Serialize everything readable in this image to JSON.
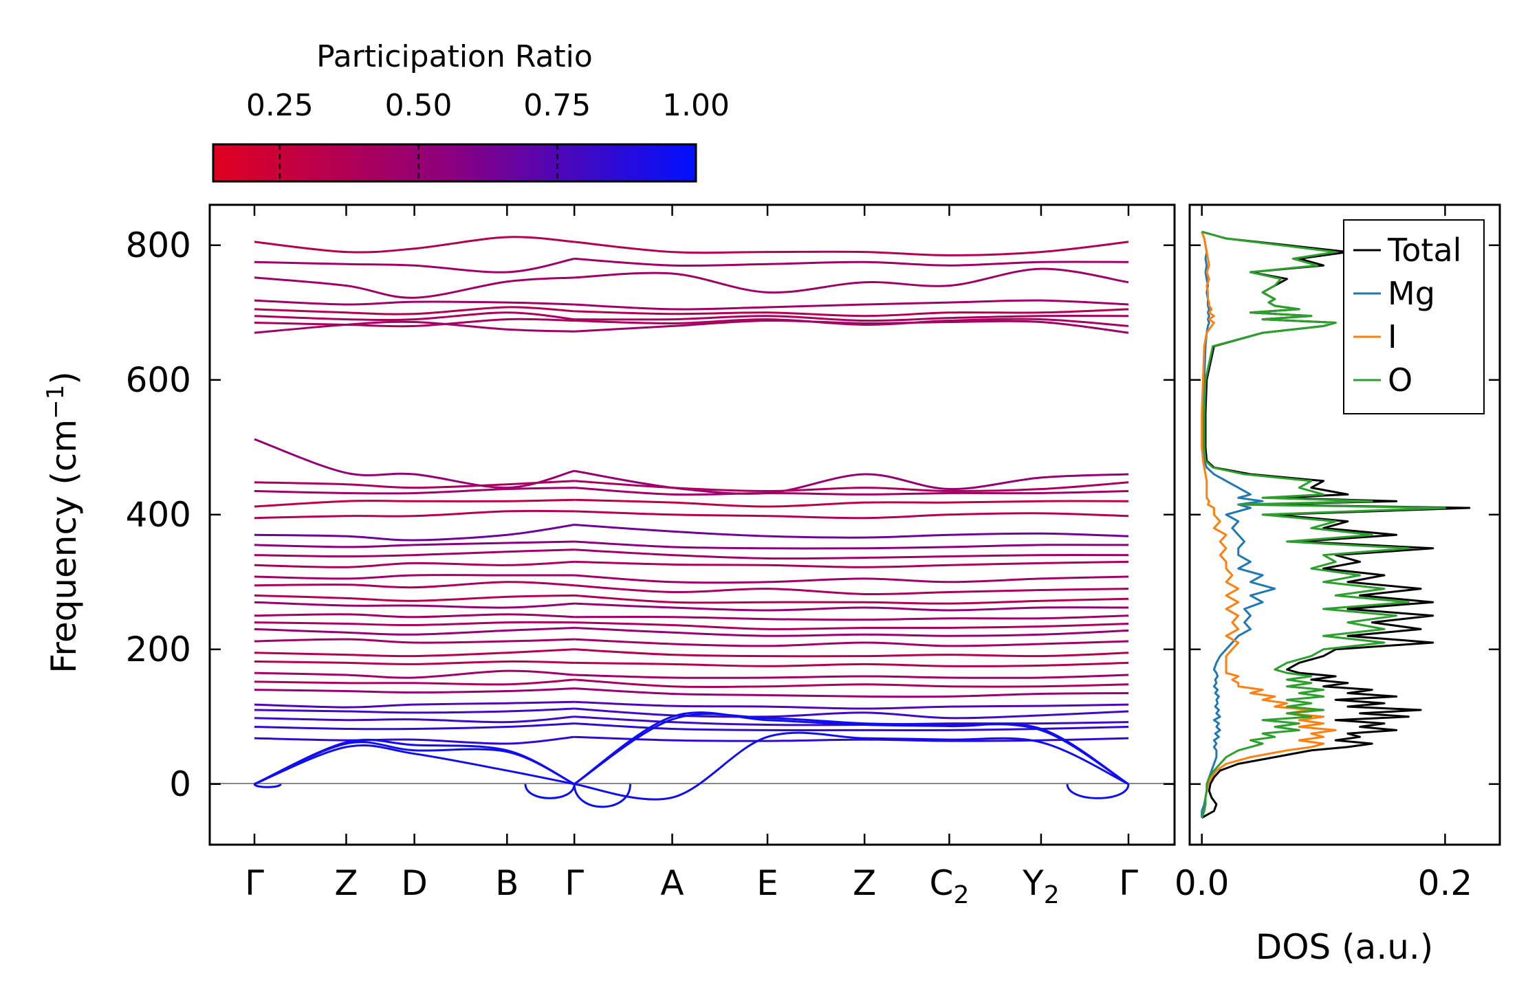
{
  "chart_data": [
    {
      "type": "line",
      "name": "phonon band structure",
      "ylabel": "Frequency (cm",
      "ylabel_sup": "−1",
      "ylabel_end": ")",
      "ylim": [
        -90,
        860
      ],
      "yticks": [
        0,
        200,
        400,
        600,
        800
      ],
      "ytick_labels": [
        "0",
        "200",
        "400",
        "600",
        "800"
      ],
      "kpath": [
        {
          "label": "Γ",
          "sub": "",
          "x": 0.0
        },
        {
          "label": "Z",
          "sub": "",
          "x": 0.105
        },
        {
          "label": "D",
          "sub": "",
          "x": 0.183
        },
        {
          "label": "B",
          "sub": "",
          "x": 0.289
        },
        {
          "label": "Γ",
          "sub": "",
          "x": 0.366
        },
        {
          "label": "A",
          "sub": "",
          "x": 0.478
        },
        {
          "label": "E",
          "sub": "",
          "x": 0.587
        },
        {
          "label": "Z",
          "sub": "",
          "x": 0.698
        },
        {
          "label": "C",
          "sub": "2",
          "x": 0.795
        },
        {
          "label": "Y",
          "sub": "2",
          "x": 0.9
        },
        {
          "label": "Γ",
          "sub": "",
          "x": 1.0
        }
      ],
      "color_by": "Participation Ratio",
      "bands": [
        {
          "f": [
            805,
            790,
            795,
            812,
            805,
            790,
            790,
            790,
            785,
            790,
            805
          ],
          "pr": 0.35
        },
        {
          "f": [
            775,
            772,
            770,
            760,
            780,
            770,
            772,
            775,
            770,
            775,
            775
          ],
          "pr": 0.45
        },
        {
          "f": [
            752,
            740,
            722,
            746,
            752,
            758,
            730,
            745,
            740,
            765,
            745
          ],
          "pr": 0.45
        },
        {
          "f": [
            718,
            712,
            716,
            715,
            712,
            705,
            708,
            712,
            715,
            718,
            712
          ],
          "pr": 0.45
        },
        {
          "f": [
            705,
            700,
            698,
            708,
            702,
            698,
            700,
            695,
            700,
            700,
            705
          ],
          "pr": 0.35
        },
        {
          "f": [
            695,
            690,
            690,
            700,
            690,
            690,
            695,
            688,
            692,
            695,
            695
          ],
          "pr": 0.4
        },
        {
          "f": [
            685,
            682,
            680,
            690,
            688,
            684,
            690,
            682,
            688,
            690,
            680
          ],
          "pr": 0.4
        },
        {
          "f": [
            670,
            682,
            686,
            675,
            672,
            680,
            688,
            684,
            686,
            686,
            670
          ],
          "pr": 0.45
        },
        {
          "f": [
            512,
            462,
            460,
            440,
            465,
            440,
            432,
            460,
            438,
            455,
            460
          ],
          "pr": 0.5
        },
        {
          "f": [
            448,
            445,
            440,
            445,
            450,
            440,
            435,
            440,
            435,
            438,
            448
          ],
          "pr": 0.4
        },
        {
          "f": [
            435,
            432,
            432,
            438,
            440,
            430,
            432,
            430,
            432,
            432,
            435
          ],
          "pr": 0.45
        },
        {
          "f": [
            412,
            420,
            420,
            420,
            422,
            418,
            412,
            418,
            418,
            420,
            420
          ],
          "pr": 0.3
        },
        {
          "f": [
            395,
            398,
            398,
            405,
            405,
            400,
            398,
            395,
            400,
            402,
            398
          ],
          "pr": 0.35
        },
        {
          "f": [
            370,
            368,
            362,
            370,
            385,
            375,
            368,
            366,
            370,
            372,
            368
          ],
          "pr": 0.65
        },
        {
          "f": [
            355,
            352,
            355,
            358,
            360,
            352,
            350,
            350,
            352,
            355,
            355
          ],
          "pr": 0.55
        },
        {
          "f": [
            340,
            338,
            340,
            345,
            348,
            340,
            335,
            336,
            338,
            340,
            340
          ],
          "pr": 0.45
        },
        {
          "f": [
            325,
            322,
            328,
            325,
            330,
            326,
            325,
            322,
            325,
            328,
            330
          ],
          "pr": 0.4
        },
        {
          "f": [
            308,
            305,
            310,
            310,
            310,
            300,
            300,
            305,
            300,
            305,
            308
          ],
          "pr": 0.45
        },
        {
          "f": [
            295,
            296,
            292,
            300,
            295,
            285,
            290,
            282,
            285,
            288,
            290
          ],
          "pr": 0.4
        },
        {
          "f": [
            280,
            276,
            272,
            278,
            280,
            270,
            270,
            270,
            268,
            272,
            275
          ],
          "pr": 0.35
        },
        {
          "f": [
            270,
            265,
            265,
            262,
            268,
            262,
            258,
            262,
            258,
            262,
            262
          ],
          "pr": 0.5
        },
        {
          "f": [
            250,
            252,
            248,
            252,
            248,
            248,
            245,
            244,
            246,
            246,
            250
          ],
          "pr": 0.45
        },
        {
          "f": [
            240,
            238,
            236,
            240,
            240,
            236,
            230,
            232,
            232,
            234,
            238
          ],
          "pr": 0.4
        },
        {
          "f": [
            230,
            225,
            222,
            228,
            232,
            225,
            220,
            222,
            220,
            222,
            228
          ],
          "pr": 0.5
        },
        {
          "f": [
            212,
            215,
            210,
            212,
            215,
            208,
            205,
            210,
            205,
            208,
            212
          ],
          "pr": 0.45
        },
        {
          "f": [
            195,
            192,
            190,
            195,
            200,
            192,
            190,
            190,
            192,
            190,
            195
          ],
          "pr": 0.35
        },
        {
          "f": [
            182,
            180,
            178,
            182,
            180,
            178,
            175,
            178,
            175,
            176,
            180
          ],
          "pr": 0.35
        },
        {
          "f": [
            165,
            162,
            158,
            168,
            162,
            158,
            158,
            160,
            158,
            158,
            162
          ],
          "pr": 0.45
        },
        {
          "f": [
            152,
            150,
            150,
            148,
            155,
            145,
            145,
            148,
            145,
            145,
            148
          ],
          "pr": 0.4
        },
        {
          "f": [
            140,
            138,
            136,
            138,
            142,
            134,
            132,
            130,
            130,
            134,
            135
          ],
          "pr": 0.5
        },
        {
          "f": [
            118,
            114,
            118,
            120,
            122,
            116,
            115,
            112,
            115,
            116,
            118
          ],
          "pr": 0.75
        },
        {
          "f": [
            110,
            108,
            106,
            108,
            112,
            102,
            100,
            106,
            98,
            102,
            108
          ],
          "pr": 0.8
        },
        {
          "f": [
            98,
            95,
            96,
            92,
            100,
            92,
            88,
            88,
            90,
            90,
            92
          ],
          "pr": 0.8
        },
        {
          "f": [
            85,
            82,
            82,
            85,
            90,
            82,
            80,
            80,
            80,
            82,
            85
          ],
          "pr": 0.85
        },
        {
          "f": [
            68,
            65,
            66,
            60,
            70,
            65,
            64,
            66,
            64,
            65,
            68
          ],
          "pr": 0.85
        },
        {
          "f": [
            0,
            62,
            58,
            50,
            0,
            100,
            95,
            88,
            86,
            82,
            0
          ],
          "pr": 0.95
        },
        {
          "f": [
            0,
            60,
            50,
            48,
            0,
            96,
            98,
            90,
            88,
            80,
            0
          ],
          "pr": 0.95
        },
        {
          "f": [
            0,
            55,
            45,
            20,
            0,
            -20,
            70,
            68,
            66,
            62,
            0
          ],
          "pr": 0.95
        }
      ],
      "imag_loops": [
        {
          "x": 0.289,
          "x0": 0.31,
          "x1": 0.366,
          "f": -28
        },
        {
          "x": 0.366,
          "x0": 0.366,
          "x1": 0.43,
          "f": -45
        },
        {
          "x": 0.93,
          "x0": 0.93,
          "x1": 1.0,
          "f": -28
        },
        {
          "x": 0.0,
          "x0": 0.0,
          "x1": 0.03,
          "f": -6
        }
      ]
    },
    {
      "type": "line",
      "name": "density of states",
      "xlabel": "DOS (a.u.)",
      "xlim": [
        -0.01,
        0.245
      ],
      "xticks": [
        0.0,
        0.2
      ],
      "xtick_labels": [
        "0.0",
        "0.2"
      ],
      "ylim": [
        -90,
        860
      ],
      "legend_position": "top-right",
      "series": [
        {
          "name": "Total",
          "color": "#000000"
        },
        {
          "name": "Mg",
          "color": "#1f77b4"
        },
        {
          "name": "I",
          "color": "#ff7f0e"
        },
        {
          "name": "O",
          "color": "#2ca02c"
        }
      ],
      "freq": [
        -50,
        -40,
        -30,
        -20,
        -10,
        0,
        10,
        20,
        30,
        40,
        50,
        55,
        60,
        65,
        70,
        75,
        80,
        85,
        90,
        95,
        100,
        105,
        110,
        115,
        120,
        125,
        130,
        135,
        140,
        145,
        150,
        155,
        160,
        165,
        170,
        180,
        190,
        200,
        210,
        220,
        230,
        240,
        250,
        260,
        270,
        280,
        290,
        300,
        310,
        320,
        330,
        340,
        350,
        360,
        370,
        380,
        390,
        400,
        410,
        415,
        420,
        425,
        430,
        440,
        450,
        460,
        470,
        480,
        500,
        550,
        600,
        650,
        670,
        680,
        685,
        690,
        695,
        700,
        705,
        710,
        715,
        720,
        730,
        740,
        750,
        760,
        770,
        780,
        790,
        800,
        810,
        820
      ],
      "total": [
        0.0,
        0.01,
        0.012,
        0.008,
        0.006,
        0.007,
        0.01,
        0.015,
        0.03,
        0.06,
        0.09,
        0.12,
        0.14,
        0.11,
        0.13,
        0.12,
        0.16,
        0.13,
        0.15,
        0.11,
        0.17,
        0.13,
        0.18,
        0.12,
        0.15,
        0.11,
        0.16,
        0.12,
        0.14,
        0.1,
        0.12,
        0.09,
        0.11,
        0.08,
        0.07,
        0.08,
        0.1,
        0.11,
        0.19,
        0.12,
        0.18,
        0.14,
        0.19,
        0.12,
        0.19,
        0.13,
        0.18,
        0.12,
        0.15,
        0.1,
        0.13,
        0.11,
        0.19,
        0.08,
        0.16,
        0.1,
        0.12,
        0.06,
        0.22,
        0.04,
        0.16,
        0.06,
        0.12,
        0.09,
        0.1,
        0.04,
        0.01,
        0.004,
        0.003,
        0.003,
        0.004,
        0.01,
        0.05,
        0.1,
        0.11,
        0.05,
        0.09,
        0.04,
        0.08,
        0.06,
        0.055,
        0.06,
        0.05,
        0.06,
        0.07,
        0.04,
        0.1,
        0.08,
        0.12,
        0.07,
        0.02,
        0.0
      ],
      "mg": [
        0.0,
        0.0,
        0.002,
        0.003,
        0.004,
        0.005,
        0.006,
        0.008,
        0.01,
        0.012,
        0.012,
        0.01,
        0.012,
        0.01,
        0.014,
        0.011,
        0.015,
        0.012,
        0.014,
        0.01,
        0.015,
        0.012,
        0.014,
        0.011,
        0.013,
        0.012,
        0.014,
        0.011,
        0.013,
        0.01,
        0.012,
        0.011,
        0.013,
        0.012,
        0.01,
        0.012,
        0.015,
        0.02,
        0.025,
        0.03,
        0.04,
        0.035,
        0.04,
        0.035,
        0.05,
        0.04,
        0.06,
        0.04,
        0.05,
        0.03,
        0.04,
        0.03,
        0.03,
        0.035,
        0.03,
        0.025,
        0.03,
        0.02,
        0.04,
        0.03,
        0.05,
        0.03,
        0.04,
        0.03,
        0.02,
        0.01,
        0.004,
        0.002,
        0.001,
        0.001,
        0.002,
        0.003,
        0.004,
        0.005,
        0.006,
        0.005,
        0.006,
        0.005,
        0.006,
        0.005,
        0.005,
        0.005,
        0.004,
        0.005,
        0.004,
        0.003,
        0.004,
        0.003,
        0.004,
        0.003,
        0.002,
        0.0
      ],
      "i": [
        0.0,
        0.002,
        0.003,
        0.003,
        0.004,
        0.005,
        0.008,
        0.012,
        0.02,
        0.04,
        0.07,
        0.09,
        0.1,
        0.08,
        0.1,
        0.09,
        0.11,
        0.08,
        0.1,
        0.08,
        0.1,
        0.07,
        0.09,
        0.06,
        0.07,
        0.05,
        0.06,
        0.04,
        0.05,
        0.03,
        0.03,
        0.025,
        0.03,
        0.02,
        0.02,
        0.02,
        0.02,
        0.025,
        0.03,
        0.02,
        0.03,
        0.025,
        0.03,
        0.02,
        0.03,
        0.02,
        0.03,
        0.02,
        0.025,
        0.02,
        0.02,
        0.015,
        0.02,
        0.015,
        0.02,
        0.01,
        0.015,
        0.01,
        0.01,
        0.005,
        0.006,
        0.004,
        0.004,
        0.004,
        0.004,
        0.003,
        0.002,
        0.001,
        0.0,
        0.0,
        0.001,
        0.002,
        0.004,
        0.008,
        0.01,
        0.006,
        0.01,
        0.006,
        0.008,
        0.006,
        0.006,
        0.005,
        0.005,
        0.004,
        0.006,
        0.004,
        0.006,
        0.005,
        0.004,
        0.003,
        0.002,
        0.0
      ],
      "o": [
        0.0,
        0.002,
        0.003,
        0.003,
        0.004,
        0.004,
        0.006,
        0.01,
        0.015,
        0.02,
        0.03,
        0.04,
        0.05,
        0.04,
        0.06,
        0.05,
        0.08,
        0.06,
        0.08,
        0.05,
        0.09,
        0.07,
        0.1,
        0.07,
        0.09,
        0.07,
        0.1,
        0.08,
        0.1,
        0.07,
        0.09,
        0.07,
        0.09,
        0.07,
        0.06,
        0.07,
        0.09,
        0.1,
        0.15,
        0.1,
        0.15,
        0.12,
        0.16,
        0.1,
        0.17,
        0.11,
        0.15,
        0.1,
        0.13,
        0.09,
        0.11,
        0.1,
        0.17,
        0.07,
        0.14,
        0.09,
        0.11,
        0.05,
        0.2,
        0.03,
        0.14,
        0.05,
        0.1,
        0.08,
        0.09,
        0.035,
        0.009,
        0.003,
        0.002,
        0.002,
        0.003,
        0.009,
        0.05,
        0.1,
        0.11,
        0.05,
        0.09,
        0.04,
        0.08,
        0.06,
        0.055,
        0.06,
        0.05,
        0.06,
        0.065,
        0.04,
        0.095,
        0.075,
        0.11,
        0.065,
        0.02,
        0.0
      ]
    }
  ],
  "colorbar": {
    "title": "Participation Ratio",
    "range": [
      0.13,
      1.0
    ],
    "ticks": [
      0.25,
      0.5,
      0.75,
      1.0
    ],
    "tick_labels": [
      "0.25",
      "0.50",
      "0.75",
      "1.00"
    ],
    "color_low": "#e00020",
    "color_mid": "#8a0080",
    "color_high": "#0010ff"
  }
}
